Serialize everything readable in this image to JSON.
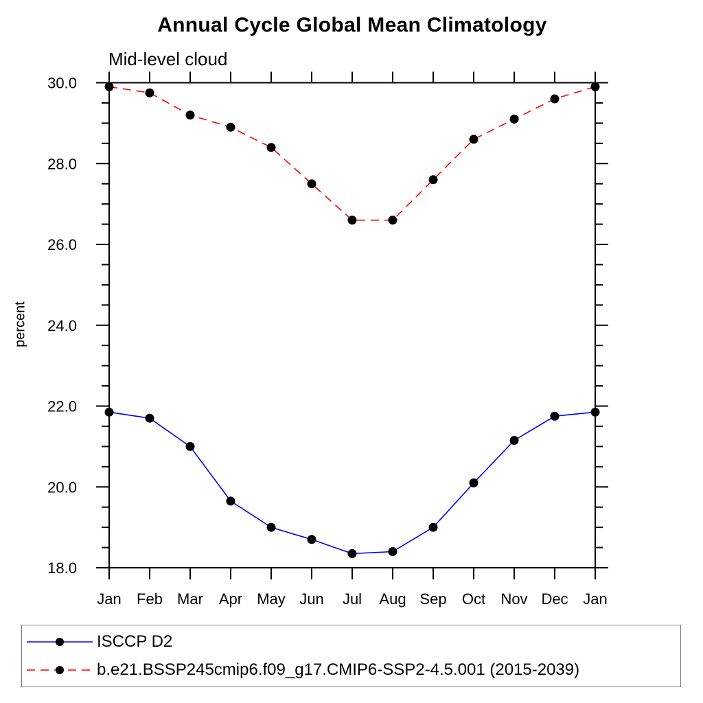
{
  "page": {
    "background": "#ffffff",
    "frame_color": "#000000"
  },
  "chart_data": {
    "type": "line",
    "title": "Annual Cycle Global Mean Climatology",
    "subtitle": "Mid-level cloud",
    "ylabel": "percent",
    "xlabel": "",
    "x_categories": [
      "Jan",
      "Feb",
      "Mar",
      "Apr",
      "May",
      "Jun",
      "Jul",
      "Aug",
      "Sep",
      "Oct",
      "Nov",
      "Dec",
      "Jan"
    ],
    "ylim": [
      18.0,
      30.0
    ],
    "ytick_major_step": 2.0,
    "ytick_minor_step": 0.5,
    "ytick_labels": [
      "18.0",
      "20.0",
      "22.0",
      "24.0",
      "26.0",
      "28.0",
      "30.0"
    ],
    "grid": false,
    "legend_position": "bottom-left-box",
    "marker": {
      "shape": "circle",
      "color": "#000000",
      "radius": 6.5
    },
    "series": [
      {
        "name": "ISCCP D2",
        "color": "#0000ff",
        "line_style": "solid",
        "values": [
          21.85,
          21.7,
          21.0,
          19.65,
          19.0,
          18.7,
          18.35,
          18.4,
          19.0,
          20.1,
          21.15,
          21.75,
          21.85
        ]
      },
      {
        "name": "b.e21.BSSP245cmip6.f09_g17.CMIP6-SSP2-4.5.001 (2015-2039)",
        "color": "#ff0000",
        "line_style": "dashed",
        "values": [
          29.9,
          29.75,
          29.2,
          28.9,
          28.4,
          27.5,
          26.6,
          26.6,
          27.6,
          28.6,
          29.1,
          29.6,
          29.9
        ]
      }
    ]
  }
}
